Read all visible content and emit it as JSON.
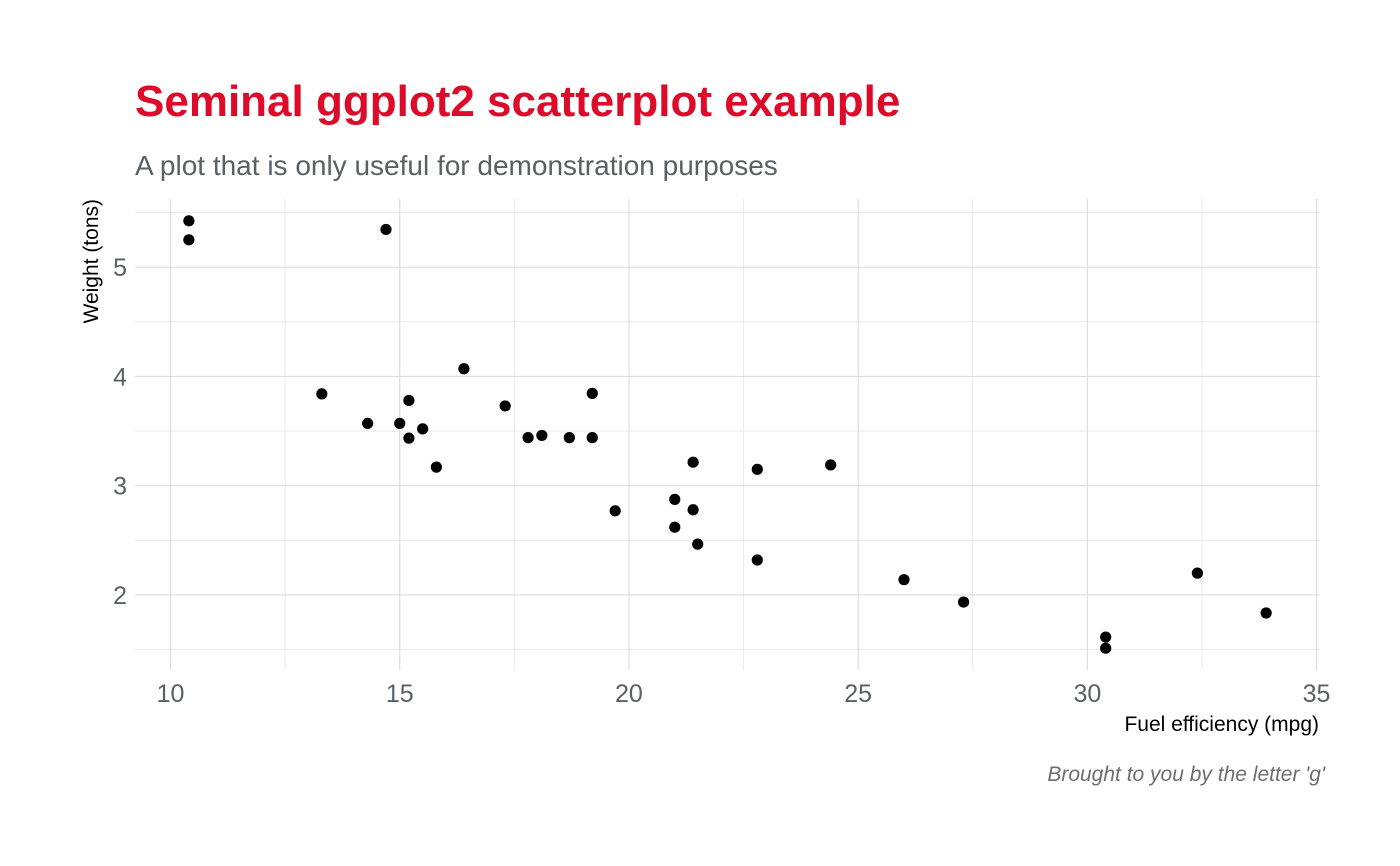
{
  "chart_data": {
    "type": "scatter",
    "title": "Seminal ggplot2 scatterplot example",
    "subtitle": "A plot that is only useful for demonstration purposes",
    "xlabel": "Fuel efficiency (mpg)",
    "ylabel": "Weight (tons)",
    "caption": "Brought to you by the letter 'g'",
    "xlim": [
      9.225,
      35.075
    ],
    "ylim": [
      1.3134,
      5.6236
    ],
    "x_ticks": [
      10,
      15,
      20,
      25,
      30,
      35
    ],
    "y_ticks": [
      2,
      3,
      4,
      5
    ],
    "x_minor": [
      12.5,
      17.5,
      22.5,
      27.5,
      32.5
    ],
    "y_minor": [
      1.5,
      2.5,
      3.5,
      4.5,
      5.5
    ],
    "grid": true,
    "point_color": "#000000",
    "title_color": "#dd0a29",
    "points": [
      {
        "x": 21.0,
        "y": 2.62
      },
      {
        "x": 21.0,
        "y": 2.875
      },
      {
        "x": 22.8,
        "y": 2.32
      },
      {
        "x": 21.4,
        "y": 3.215
      },
      {
        "x": 18.7,
        "y": 3.44
      },
      {
        "x": 18.1,
        "y": 3.46
      },
      {
        "x": 14.3,
        "y": 3.57
      },
      {
        "x": 24.4,
        "y": 3.19
      },
      {
        "x": 22.8,
        "y": 3.15
      },
      {
        "x": 19.2,
        "y": 3.44
      },
      {
        "x": 17.8,
        "y": 3.44
      },
      {
        "x": 16.4,
        "y": 4.07
      },
      {
        "x": 17.3,
        "y": 3.73
      },
      {
        "x": 15.2,
        "y": 3.78
      },
      {
        "x": 10.4,
        "y": 5.25
      },
      {
        "x": 10.4,
        "y": 5.424
      },
      {
        "x": 14.7,
        "y": 5.345
      },
      {
        "x": 32.4,
        "y": 2.2
      },
      {
        "x": 30.4,
        "y": 1.615
      },
      {
        "x": 33.9,
        "y": 1.835
      },
      {
        "x": 21.5,
        "y": 2.465
      },
      {
        "x": 15.5,
        "y": 3.52
      },
      {
        "x": 15.2,
        "y": 3.435
      },
      {
        "x": 13.3,
        "y": 3.84
      },
      {
        "x": 19.2,
        "y": 3.845
      },
      {
        "x": 27.3,
        "y": 1.935
      },
      {
        "x": 26.0,
        "y": 2.14
      },
      {
        "x": 30.4,
        "y": 1.513
      },
      {
        "x": 15.8,
        "y": 3.17
      },
      {
        "x": 19.7,
        "y": 2.77
      },
      {
        "x": 15.0,
        "y": 3.57
      },
      {
        "x": 21.4,
        "y": 2.78
      }
    ]
  }
}
